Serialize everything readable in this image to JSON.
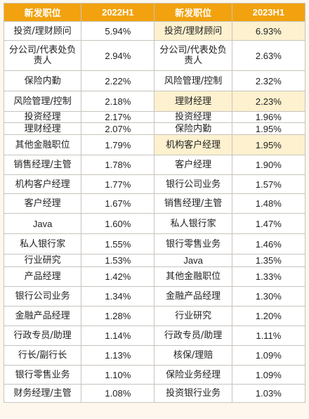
{
  "header": {
    "col1": "新发职位",
    "col2": "2022H1",
    "col3": "新发职位",
    "col4": "2023H1"
  },
  "rows": [
    {
      "p22": "投资/理财顾问",
      "v22": "5.94%",
      "p23": "投资/理财顾问",
      "v23": "6.93%"
    },
    {
      "p22": "分公司/代表处负责人",
      "v22": "2.94%",
      "p23": "分公司/代表处负责人",
      "v23": "2.63%"
    },
    {
      "p22": "保险内勤",
      "v22": "2.22%",
      "p23": "风险管理/控制",
      "v23": "2.32%"
    },
    {
      "p22": "风险管理/控制",
      "v22": "2.18%",
      "p23": "理财经理",
      "v23": "2.23%"
    },
    {
      "p22": "投资经理",
      "v22": "2.17%",
      "p23": "投资经理",
      "v23": "1.96%"
    },
    {
      "p22": "理财经理",
      "v22": "2.07%",
      "p23": "保险内勤",
      "v23": "1.95%"
    },
    {
      "p22": "其他金融职位",
      "v22": "1.79%",
      "p23": "机构客户经理",
      "v23": "1.95%"
    },
    {
      "p22": "销售经理/主管",
      "v22": "1.78%",
      "p23": "客户经理",
      "v23": "1.90%"
    },
    {
      "p22": "机构客户经理",
      "v22": "1.77%",
      "p23": "银行公司业务",
      "v23": "1.57%"
    },
    {
      "p22": "客户经理",
      "v22": "1.67%",
      "p23": "销售经理/主管",
      "v23": "1.48%"
    },
    {
      "p22": "Java",
      "v22": "1.60%",
      "p23": "私人银行家",
      "v23": "1.47%"
    },
    {
      "p22": "私人银行家",
      "v22": "1.55%",
      "p23": "银行零售业务",
      "v23": "1.46%"
    },
    {
      "p22": "行业研究",
      "v22": "1.53%",
      "p23": "Java",
      "v23": "1.35%"
    },
    {
      "p22": "产品经理",
      "v22": "1.42%",
      "p23": "其他金融职位",
      "v23": "1.33%"
    },
    {
      "p22": "银行公司业务",
      "v22": "1.34%",
      "p23": "金融产品经理",
      "v23": "1.30%"
    },
    {
      "p22": "金融产品经理",
      "v22": "1.28%",
      "p23": "行业研究",
      "v23": "1.20%"
    },
    {
      "p22": "行政专员/助理",
      "v22": "1.14%",
      "p23": "行政专员/助理",
      "v23": "1.11%"
    },
    {
      "p22": "行长/副行长",
      "v22": "1.13%",
      "p23": "核保/理赔",
      "v23": "1.09%"
    },
    {
      "p22": "银行零售业务",
      "v22": "1.10%",
      "p23": "保险业务经理",
      "v23": "1.09%"
    },
    {
      "p22": "财务经理/主管",
      "v22": "1.08%",
      "p23": "投资银行业务",
      "v23": "1.03%"
    }
  ],
  "colors": {
    "header_bg": "#f2a20e",
    "highlight_bg": "#fdf1cf",
    "page_bg": "#fdf7ee"
  }
}
